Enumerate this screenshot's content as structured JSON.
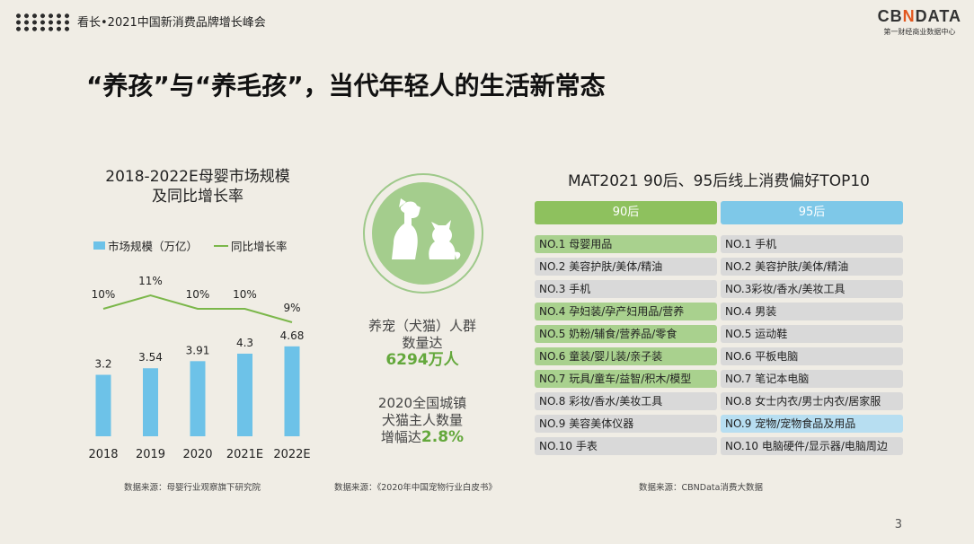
{
  "header": {
    "title": "看长•2021中国新消费品牌增长峰会",
    "logo_main_a": "CB",
    "logo_main_x": "N",
    "logo_main_b": "DATA",
    "logo_sub": "第一财经商业数据中心"
  },
  "main_title": "“养孩”与“养毛孩”，当代年轻人的生活新常态",
  "chart_data": {
    "type": "bar",
    "title_line1": "2018-2022E母婴市场规模",
    "title_line2": "及同比增长率",
    "categories": [
      "2018",
      "2019",
      "2020",
      "2021E",
      "2022E"
    ],
    "series": [
      {
        "name": "市场规模（万亿）",
        "type": "bar",
        "values": [
          3.2,
          3.54,
          3.91,
          4.3,
          4.68
        ],
        "labels": [
          "3.2",
          "3.54",
          "3.91",
          "4.3",
          "4.68"
        ],
        "color": "#6dc2e8"
      },
      {
        "name": "同比增长率",
        "type": "line",
        "values": [
          10,
          11,
          10,
          10,
          9
        ],
        "labels": [
          "10%",
          "11%",
          "10%",
          "10%",
          "9%"
        ],
        "color": "#7bb74a"
      }
    ],
    "legend_position": "top",
    "grid": false
  },
  "pet": {
    "line1": "养宠（犬猫）人群",
    "line2": "数量达",
    "big1": "6294万人",
    "line3": "2020全国城镇",
    "line4": "犬猫主人数量",
    "line5_prefix": "增幅达",
    "big2": "2.8%",
    "circle_color": "#a4cd8d"
  },
  "ranking": {
    "title": "MAT2021 90后、95后线上消费偏好TOP10",
    "col90": "90后",
    "col95": "95后",
    "list90": [
      {
        "text": "NO.1 母婴用品",
        "hl": true
      },
      {
        "text": "NO.2 美容护肤/美体/精油",
        "hl": false
      },
      {
        "text": "NO.3 手机",
        "hl": false
      },
      {
        "text": "NO.4 孕妇装/孕产妇用品/营养",
        "hl": true
      },
      {
        "text": "NO.5 奶粉/辅食/营养品/零食",
        "hl": true
      },
      {
        "text": "NO.6 童装/婴儿装/亲子装",
        "hl": true
      },
      {
        "text": "NO.7 玩具/童车/益智/积木/模型",
        "hl": true
      },
      {
        "text": "NO.8 彩妆/香水/美妆工具",
        "hl": false
      },
      {
        "text": "NO.9 美容美体仪器",
        "hl": false
      },
      {
        "text": "NO.10 手表",
        "hl": false
      }
    ],
    "list95": [
      {
        "text": "NO.1 手机",
        "hl": false
      },
      {
        "text": "NO.2 美容护肤/美体/精油",
        "hl": false
      },
      {
        "text": "NO.3彩妆/香水/美妆工具",
        "hl": false
      },
      {
        "text": "NO.4 男装",
        "hl": false
      },
      {
        "text": "NO.5 运动鞋",
        "hl": false
      },
      {
        "text": "NO.6 平板电脑",
        "hl": false
      },
      {
        "text": "NO.7 笔记本电脑",
        "hl": false
      },
      {
        "text": "NO.8 女士内衣/男士内衣/居家服",
        "hl": false
      },
      {
        "text": "NO.9 宠物/宠物食品及用品",
        "hl": true
      },
      {
        "text": "NO.10 电脑硬件/显示器/电脑周边",
        "hl": false
      }
    ]
  },
  "sources": {
    "s1": "数据来源：母婴行业观察旗下研究院",
    "s2": "数据来源：《2020年中国宠物行业白皮书》",
    "s3": "数据来源：CBNData消费大数据"
  },
  "page_number": "3"
}
